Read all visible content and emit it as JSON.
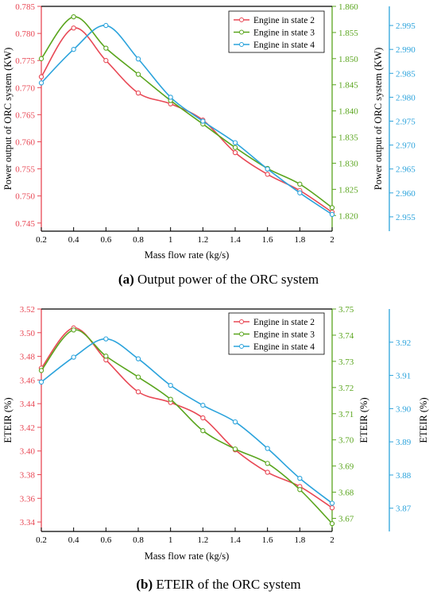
{
  "colors": {
    "state2": "#e84855",
    "state3": "#5aa51e",
    "state4": "#2ba3dc",
    "axis": "#000000"
  },
  "chart_data": [
    {
      "type": "line",
      "caption_prefix": "(a)",
      "caption_text": " Output power of the ORC system",
      "xlabel": "Mass flow rate (kg/s)",
      "x": [
        0.2,
        0.4,
        0.6,
        0.8,
        1.0,
        1.2,
        1.4,
        1.6,
        1.8,
        2.0
      ],
      "x_ticks": [
        "0.2",
        "0.4",
        "0.6",
        "0.8",
        "1",
        "1.2",
        "1.4",
        "1.6",
        "1.8",
        "2"
      ],
      "xlim": [
        0.2,
        2.0
      ],
      "legend_position": "top-right",
      "axes": [
        {
          "side": "left",
          "label": "Power output of ORC system (KW)",
          "ylim": [
            0.7435,
            0.785
          ],
          "ticks": [
            0.745,
            0.75,
            0.755,
            0.76,
            0.765,
            0.77,
            0.775,
            0.78,
            0.785
          ],
          "tick_labels": [
            "0.745",
            "0.750",
            "0.755",
            "0.760",
            "0.765",
            "0.770",
            "0.775",
            "0.780",
            "0.785"
          ]
        },
        {
          "side": "right1",
          "label": "Power output of ORC system (KW)",
          "ylim": [
            1.817,
            1.86
          ],
          "ticks": [
            1.82,
            1.825,
            1.83,
            1.835,
            1.84,
            1.845,
            1.85,
            1.855,
            1.86
          ],
          "tick_labels": [
            "1.820",
            "1.825",
            "1.830",
            "1.835",
            "1.840",
            "1.845",
            "1.850",
            "1.855",
            "1.860"
          ]
        },
        {
          "side": "right2",
          "label": "",
          "ylim": [
            2.952,
            2.999
          ],
          "ticks": [
            2.955,
            2.96,
            2.965,
            2.97,
            2.975,
            2.98,
            2.985,
            2.99,
            2.995
          ],
          "tick_labels": [
            "2.955",
            "2.960",
            "2.965",
            "2.970",
            "2.975",
            "2.980",
            "2.985",
            "2.990",
            "2.995"
          ]
        }
      ],
      "series": [
        {
          "name": "Engine in state 2",
          "axis": 0,
          "color_key": "state2",
          "values": [
            0.772,
            0.781,
            0.775,
            0.769,
            0.767,
            0.764,
            0.758,
            0.754,
            0.751,
            0.747
          ]
        },
        {
          "name": "Engine in state 3",
          "axis": 1,
          "color_key": "state3",
          "values": [
            1.85,
            1.858,
            1.852,
            1.847,
            1.842,
            1.8375,
            1.833,
            1.829,
            1.826,
            1.8215
          ]
        },
        {
          "name": "Engine in state 4",
          "axis": 2,
          "color_key": "state4",
          "values": [
            2.983,
            2.99,
            2.995,
            2.988,
            2.98,
            2.975,
            2.9705,
            2.965,
            2.96,
            2.9555
          ]
        }
      ]
    },
    {
      "type": "line",
      "caption_prefix": "(b)",
      "caption_text": " ETEIR of the ORC system",
      "xlabel": "Mass flow rate (kg/s)",
      "x": [
        0.2,
        0.4,
        0.6,
        0.8,
        1.0,
        1.2,
        1.4,
        1.6,
        1.8,
        2.0
      ],
      "x_ticks": [
        "0.2",
        "0.4",
        "0.6",
        "0.8",
        "1",
        "1.2",
        "1.4",
        "1.6",
        "1.8",
        "2"
      ],
      "xlim": [
        0.2,
        2.0
      ],
      "legend_position": "top-right",
      "axes": [
        {
          "side": "left",
          "label": "ETEIR (%)",
          "ylim": [
            3.332,
            3.52
          ],
          "ticks": [
            3.34,
            3.36,
            3.38,
            3.4,
            3.42,
            3.44,
            3.46,
            3.48,
            3.5,
            3.52
          ],
          "tick_labels": [
            "3.34",
            "3.36",
            "3.38",
            "3.40",
            "3.42",
            "3.44",
            "3.46",
            "3.48",
            "3.50",
            "3.52"
          ]
        },
        {
          "side": "right1",
          "label": "ETEIR (%)",
          "ylim": [
            3.665,
            3.75
          ],
          "ticks": [
            3.67,
            3.68,
            3.69,
            3.7,
            3.71,
            3.72,
            3.73,
            3.74,
            3.75
          ],
          "tick_labels": [
            "3.67",
            "3.68",
            "3.69",
            "3.70",
            "3.71",
            "3.72",
            "3.73",
            "3.74",
            "3.75"
          ]
        },
        {
          "side": "right2",
          "label": "ETEIR (%)",
          "ylim": [
            3.863,
            3.93
          ],
          "ticks": [
            3.87,
            3.88,
            3.89,
            3.9,
            3.91,
            3.92
          ],
          "tick_labels": [
            "3.87",
            "3.88",
            "3.89",
            "3.90",
            "3.91",
            "3.92"
          ]
        }
      ],
      "series": [
        {
          "name": "Engine in state 2",
          "axis": 0,
          "color_key": "state2",
          "values": [
            3.47,
            3.504,
            3.477,
            3.45,
            3.441,
            3.428,
            3.401,
            3.382,
            3.37,
            3.352
          ]
        },
        {
          "name": "Engine in state 3",
          "axis": 1,
          "color_key": "state3",
          "values": [
            3.7265,
            3.742,
            3.732,
            3.724,
            3.7155,
            3.7035,
            3.6965,
            3.691,
            3.681,
            3.668
          ]
        },
        {
          "name": "Engine in state 4",
          "axis": 2,
          "color_key": "state4",
          "values": [
            3.908,
            3.9155,
            3.921,
            3.915,
            3.907,
            3.901,
            3.896,
            3.888,
            3.879,
            3.8715
          ]
        }
      ]
    }
  ]
}
